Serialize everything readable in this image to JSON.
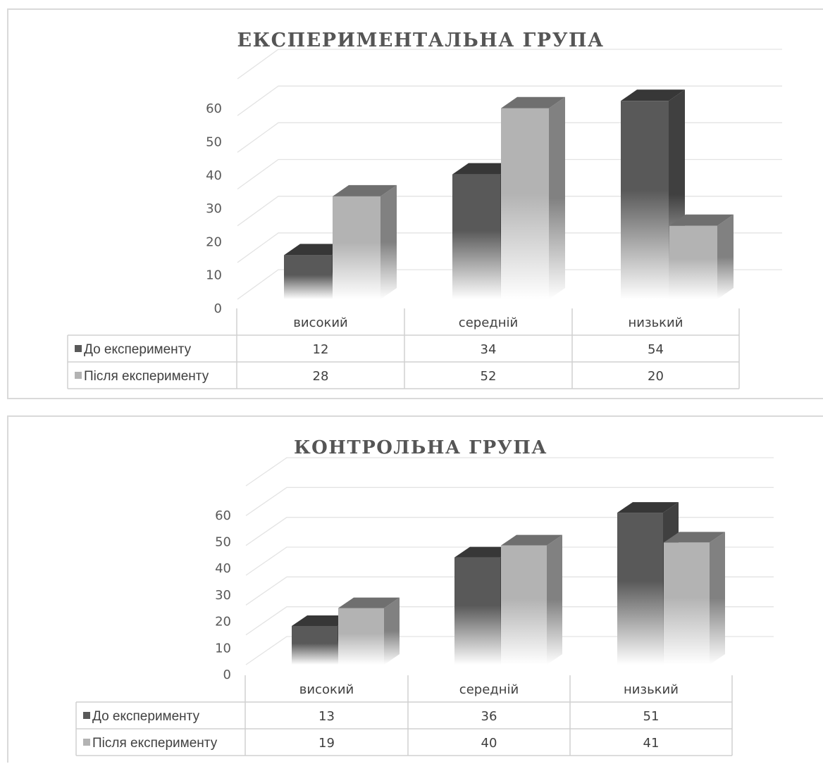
{
  "chart_data": [
    {
      "type": "bar",
      "title": "ЕКСПЕРИМЕНТАЛЬНА ГРУПА",
      "categories": [
        "високий",
        "середній",
        "низький"
      ],
      "series": [
        {
          "name": "До експерименту",
          "values": [
            12,
            34,
            54
          ],
          "color": "#595959"
        },
        {
          "name": "Після експерименту",
          "values": [
            28,
            52,
            20
          ],
          "color": "#b3b3b3"
        }
      ],
      "y_ticks": [
        "0",
        "10",
        "20",
        "30",
        "40",
        "50",
        "60"
      ],
      "ylim": [
        0,
        60
      ],
      "grid": true,
      "legend": "data-table"
    },
    {
      "type": "bar",
      "title": "КОНТРОЛЬНА ГРУПА",
      "categories": [
        "високий",
        "середній",
        "низький"
      ],
      "series": [
        {
          "name": "До експерименту",
          "values": [
            13,
            36,
            51
          ],
          "color": "#595959"
        },
        {
          "name": "Після експерименту",
          "values": [
            19,
            40,
            41
          ],
          "color": "#b3b3b3"
        }
      ],
      "y_ticks": [
        "0",
        "10",
        "20",
        "30",
        "40",
        "50",
        "60"
      ],
      "ylim": [
        0,
        60
      ],
      "grid": true,
      "legend": "data-table"
    }
  ]
}
